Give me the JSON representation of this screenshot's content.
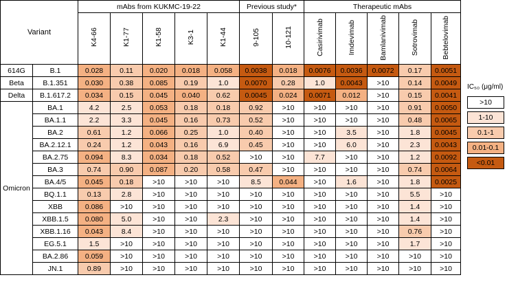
{
  "chart_data": {
    "type": "table",
    "variant_header": "Variant",
    "groups": [
      {
        "label": "mAbs from KUKMC-19-22",
        "span": 5
      },
      {
        "label": "Previous study*",
        "span": 2
      },
      {
        "label": "Therapeutic mAbs",
        "span": 5
      }
    ],
    "antibodies": [
      "K4-66",
      "K1-77",
      "K1-58",
      "K3-1",
      "K1-44",
      "9-105",
      "10-121",
      "Casirivimab",
      "Imdevimab",
      "Bamlanivimab",
      "Sotrovimab",
      "Bebtelovimab"
    ],
    "rows": [
      {
        "variant": "614G",
        "lineage": "B.1",
        "values": [
          "0.028",
          "0.11",
          "0.020",
          "0.018",
          "0.058",
          "0.0038",
          "0.018",
          "0.0076",
          "0.0036",
          "0.0072",
          "0.17",
          "0.0051"
        ]
      },
      {
        "variant": "Beta",
        "lineage": "B.1.351",
        "values": [
          "0.030",
          "0.38",
          "0.085",
          "0.19",
          "1.0",
          "0.0070",
          "0.28",
          "1.0",
          "0.0043",
          ">10",
          "0.14",
          "0.0049"
        ]
      },
      {
        "variant": "Delta",
        "lineage": "B.1.617.2",
        "values": [
          "0.034",
          "0.15",
          "0.045",
          "0.040",
          "0.62",
          "0.0045",
          "0.024",
          "0.0071",
          "0.012",
          ">10",
          "0.15",
          "0.0041"
        ]
      },
      {
        "variant": "Omicron",
        "lineage": "BA.1",
        "values": [
          "4.2",
          "2.5",
          "0.053",
          "0.18",
          "0.18",
          "0.92",
          ">10",
          ">10",
          ">10",
          ">10",
          "0.91",
          "0.0050"
        ]
      },
      {
        "variant": "Omicron",
        "lineage": "BA.1.1",
        "values": [
          "2.2",
          "3.3",
          "0.045",
          "0.16",
          "0.73",
          "0.52",
          ">10",
          ">10",
          ">10",
          ">10",
          "0.48",
          "0.0065"
        ]
      },
      {
        "variant": "Omicron",
        "lineage": "BA.2",
        "values": [
          "0.61",
          "1.2",
          "0.066",
          "0.25",
          "1.0",
          "0.40",
          ">10",
          ">10",
          "3.5",
          ">10",
          "1.8",
          "0.0045"
        ]
      },
      {
        "variant": "Omicron",
        "lineage": "BA.2.12.1",
        "values": [
          "0.24",
          "1.2",
          "0.043",
          "0.16",
          "6.9",
          "0.45",
          ">10",
          ">10",
          "6.0",
          ">10",
          "2.3",
          "0.0043"
        ]
      },
      {
        "variant": "Omicron",
        "lineage": "BA.2.75",
        "values": [
          "0.094",
          "8.3",
          "0.034",
          "0.18",
          "0.52",
          ">10",
          ">10",
          "7.7",
          ">10",
          ">10",
          "1.2",
          "0.0092"
        ]
      },
      {
        "variant": "Omicron",
        "lineage": "BA.3",
        "values": [
          "0.74",
          "0.90",
          "0.087",
          "0.20",
          "0.58",
          "0.47",
          ">10",
          ">10",
          ">10",
          ">10",
          "0.74",
          "0.0064"
        ]
      },
      {
        "variant": "Omicron",
        "lineage": "BA.4/5",
        "values": [
          "0.045",
          "0.18",
          ">10",
          ">10",
          ">10",
          "8.5",
          "0.044",
          ">10",
          "1.6",
          ">10",
          "1.8",
          "0.0025"
        ]
      },
      {
        "variant": "Omicron",
        "lineage": "BQ.1.1",
        "values": [
          "0.13",
          "2.8",
          ">10",
          ">10",
          ">10",
          ">10",
          ">10",
          ">10",
          ">10",
          ">10",
          "5.5",
          ">10"
        ]
      },
      {
        "variant": "Omicron",
        "lineage": "XBB",
        "values": [
          "0.086",
          ">10",
          ">10",
          ">10",
          ">10",
          ">10",
          ">10",
          ">10",
          ">10",
          ">10",
          "1.4",
          ">10"
        ]
      },
      {
        "variant": "Omicron",
        "lineage": "XBB.1.5",
        "values": [
          "0.080",
          "5.0",
          ">10",
          ">10",
          "2.3",
          ">10",
          ">10",
          ">10",
          ">10",
          ">10",
          "1.4",
          ">10"
        ]
      },
      {
        "variant": "Omicron",
        "lineage": "XBB.1.16",
        "values": [
          "0.043",
          "8.4",
          ">10",
          ">10",
          ">10",
          ">10",
          ">10",
          ">10",
          ">10",
          ">10",
          "0.76",
          ">10"
        ]
      },
      {
        "variant": "Omicron",
        "lineage": "EG.5.1",
        "values": [
          "1.5",
          ">10",
          ">10",
          ">10",
          ">10",
          ">10",
          ">10",
          ">10",
          ">10",
          ">10",
          "1.7",
          ">10"
        ]
      },
      {
        "variant": "Omicron",
        "lineage": "BA.2.86",
        "values": [
          "0.059",
          ">10",
          ">10",
          ">10",
          ">10",
          ">10",
          ">10",
          ">10",
          ">10",
          ">10",
          ">10",
          ">10"
        ]
      },
      {
        "variant": "Omicron",
        "lineage": "JN.1",
        "values": [
          "0.89",
          ">10",
          ">10",
          ">10",
          ">10",
          ">10",
          ">10",
          ">10",
          ">10",
          ">10",
          ">10",
          ">10"
        ]
      }
    ],
    "legend": {
      "title": "IC₅₀ (μg/ml)",
      "items": [
        {
          "label": ">10",
          "color": "#ffffff",
          "min": 10,
          "max": null
        },
        {
          "label": "1-10",
          "color": "#fce4d6",
          "min": 1,
          "max": 10
        },
        {
          "label": "0.1-1",
          "color": "#f8cbad",
          "min": 0.1,
          "max": 1
        },
        {
          "label": "0.01-0.1",
          "color": "#f4b183",
          "min": 0.01,
          "max": 0.1
        },
        {
          "label": "<0.01",
          "color": "#c55a11",
          "min": null,
          "max": 0.01
        }
      ]
    }
  }
}
